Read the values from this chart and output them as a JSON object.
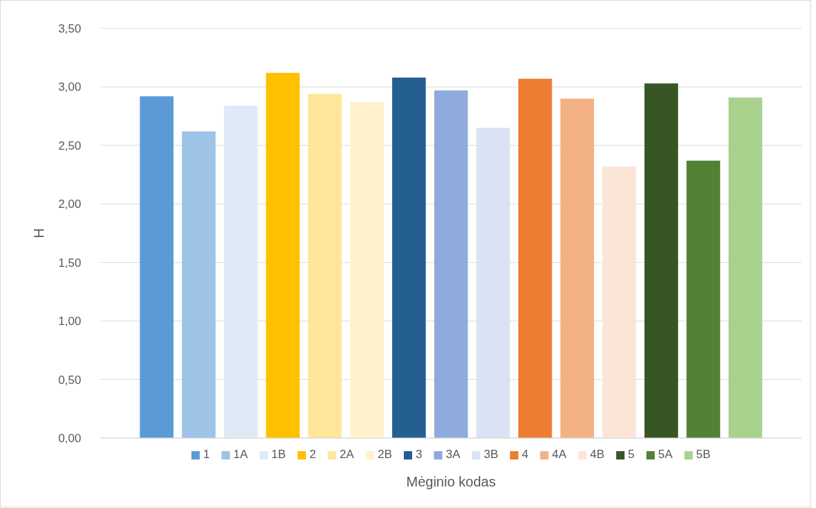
{
  "chart_data": {
    "type": "bar",
    "xlabel": "Mėginio kodas",
    "ylabel": "H",
    "categories": [
      null
    ],
    "series": [
      {
        "name": "1",
        "color": "#5b9bd5",
        "values": [
          2.92
        ]
      },
      {
        "name": "1A",
        "color": "#9dc3e6",
        "values": [
          2.62
        ]
      },
      {
        "name": "1B",
        "color": "#deebf7",
        "values": [
          2.84
        ]
      },
      {
        "name": "2",
        "color": "#ffc000",
        "values": [
          3.12
        ]
      },
      {
        "name": "2A",
        "color": "#ffe699",
        "values": [
          2.94
        ]
      },
      {
        "name": "2B",
        "color": "#fff2cc",
        "values": [
          2.87
        ]
      },
      {
        "name": "3",
        "color": "#255e91",
        "values": [
          3.08
        ]
      },
      {
        "name": "3A",
        "color": "#8faadc",
        "values": [
          2.97
        ]
      },
      {
        "name": "3B",
        "color": "#dae3f3",
        "values": [
          2.65
        ]
      },
      {
        "name": "4",
        "color": "#ed7d31",
        "values": [
          3.07
        ]
      },
      {
        "name": "4A",
        "color": "#f4b183",
        "values": [
          2.9
        ]
      },
      {
        "name": "4B",
        "color": "#fbe5d6",
        "values": [
          2.32
        ]
      },
      {
        "name": "5",
        "color": "#375623",
        "values": [
          3.03
        ]
      },
      {
        "name": "5A",
        "color": "#538135",
        "values": [
          2.37
        ]
      },
      {
        "name": "5B",
        "color": "#a9d18e",
        "values": [
          2.91
        ]
      }
    ],
    "ylim": [
      0,
      3.5
    ],
    "yticks": [
      {
        "value": 0,
        "label": "0,00"
      },
      {
        "value": 0.5,
        "label": "0,50"
      },
      {
        "value": 1,
        "label": "1,00"
      },
      {
        "value": 1.5,
        "label": "1,50"
      },
      {
        "value": 2,
        "label": "2,00"
      },
      {
        "value": 2.5,
        "label": "2,50"
      },
      {
        "value": 3,
        "label": "3,00"
      },
      {
        "value": 3.5,
        "label": "3,50"
      }
    ],
    "grid": "y",
    "legend": "bottom"
  }
}
